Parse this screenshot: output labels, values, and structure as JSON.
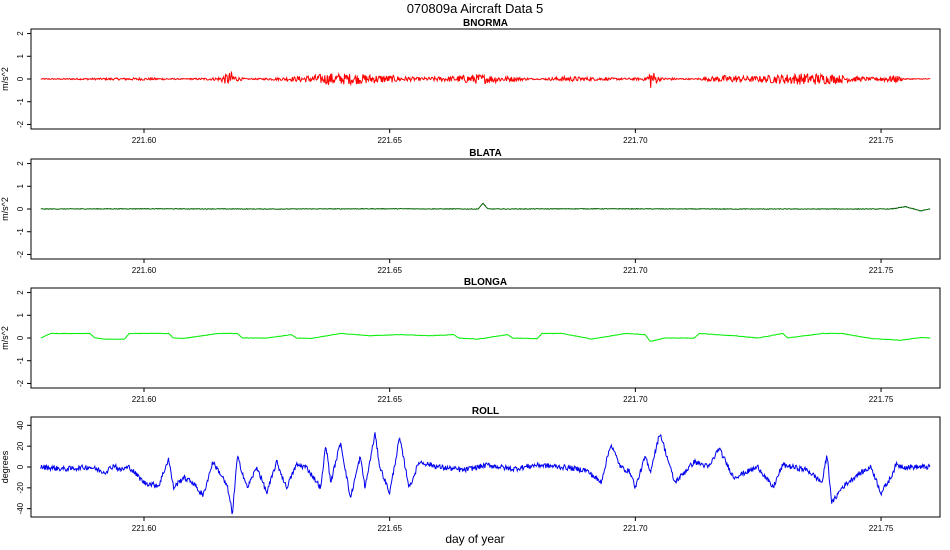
{
  "figure": {
    "title": "070809a   Aircraft Data 5",
    "xlabel": "day of year"
  },
  "chart_data": [
    {
      "type": "line",
      "title": "BNORMA",
      "ylabel": "m/s^2",
      "color": "#ff0000",
      "xlim": [
        221.577,
        221.762
      ],
      "ylim": [
        -2.2,
        2.2
      ],
      "xticks": [
        221.6,
        221.65,
        221.7,
        221.75
      ],
      "xtick_labels": [
        "221.60",
        "221.65",
        "221.70",
        "221.75"
      ],
      "yticks": [
        -2,
        -1,
        0,
        1,
        2
      ],
      "ytick_labels": [
        "-2",
        "-1",
        "0",
        "1",
        "2"
      ],
      "series": [
        {
          "x": [
            221.579,
            221.59,
            221.6,
            221.608,
            221.615,
            221.618,
            221.619,
            221.621,
            221.628,
            221.634,
            221.638,
            221.644,
            221.65,
            221.656,
            221.662,
            221.668,
            221.674,
            221.68,
            221.686,
            221.692,
            221.698,
            221.702,
            221.703,
            221.705,
            221.712,
            221.718,
            221.724,
            221.73,
            221.736,
            221.742,
            221.748,
            221.753,
            221.755,
            221.76
          ],
          "y": [
            0.0,
            0.02,
            0.04,
            0.0,
            0.05,
            0.35,
            0.08,
            0.0,
            0.05,
            0.15,
            0.25,
            0.2,
            0.15,
            0.05,
            0.1,
            0.2,
            0.1,
            0.0,
            0.1,
            0.05,
            0.02,
            0.05,
            0.45,
            0.05,
            0.0,
            0.15,
            0.1,
            0.2,
            0.25,
            0.15,
            0.05,
            0.15,
            0.0,
            0.0
          ]
        }
      ]
    },
    {
      "type": "line",
      "title": "BLATA",
      "ylabel": "m/s^2",
      "color": "#006400",
      "xlim": [
        221.577,
        221.762
      ],
      "ylim": [
        -2.2,
        2.2
      ],
      "xticks": [
        221.6,
        221.65,
        221.7,
        221.75
      ],
      "xtick_labels": [
        "221.60",
        "221.65",
        "221.70",
        "221.75"
      ],
      "yticks": [
        -2,
        -1,
        0,
        1,
        2
      ],
      "ytick_labels": [
        "-2",
        "-1",
        "0",
        "1",
        "2"
      ],
      "series": [
        {
          "x": [
            221.579,
            221.6,
            221.625,
            221.65,
            221.668,
            221.669,
            221.67,
            221.69,
            221.715,
            221.74,
            221.752,
            221.755,
            221.758,
            221.76
          ],
          "y": [
            0.0,
            0.01,
            0.0,
            0.01,
            0.0,
            0.25,
            0.0,
            0.01,
            0.0,
            0.0,
            0.0,
            0.1,
            -0.08,
            0.0
          ]
        }
      ]
    },
    {
      "type": "line",
      "title": "BLONGA",
      "ylabel": "m/s^2",
      "color": "#00ee00",
      "xlim": [
        221.577,
        221.762
      ],
      "ylim": [
        -2.2,
        2.2
      ],
      "xticks": [
        221.6,
        221.65,
        221.7,
        221.75
      ],
      "xtick_labels": [
        "221.60",
        "221.65",
        "221.70",
        "221.75"
      ],
      "yticks": [
        -2,
        -1,
        0,
        1,
        2
      ],
      "ytick_labels": [
        "-2",
        "-1",
        "0",
        "1",
        "2"
      ],
      "series": [
        {
          "x": [
            221.579,
            221.581,
            221.589,
            221.59,
            221.592,
            221.596,
            221.597,
            221.605,
            221.606,
            221.608,
            221.615,
            221.619,
            221.62,
            221.625,
            221.63,
            221.631,
            221.634,
            221.64,
            221.646,
            221.652,
            221.658,
            221.663,
            221.664,
            221.668,
            221.674,
            221.675,
            221.68,
            221.681,
            221.685,
            221.69,
            221.691,
            221.698,
            221.702,
            221.703,
            221.706,
            221.712,
            221.713,
            221.72,
            221.725,
            221.73,
            221.731,
            221.738,
            221.742,
            221.748,
            221.754,
            221.758,
            221.76
          ],
          "y": [
            0.0,
            0.2,
            0.2,
            0.0,
            -0.05,
            -0.05,
            0.2,
            0.2,
            0.0,
            -0.02,
            0.2,
            0.2,
            0.0,
            0.0,
            0.15,
            0.0,
            -0.02,
            0.2,
            0.1,
            0.15,
            0.1,
            0.15,
            0.0,
            -0.05,
            0.15,
            0.0,
            -0.03,
            0.2,
            0.2,
            0.0,
            -0.05,
            0.2,
            0.15,
            -0.15,
            0.0,
            0.0,
            0.2,
            0.1,
            0.0,
            0.2,
            0.0,
            0.2,
            0.2,
            -0.02,
            -0.1,
            0.02,
            0.0
          ]
        }
      ]
    },
    {
      "type": "line",
      "title": "ROLL",
      "ylabel": "degrees",
      "color": "#0000ee",
      "xlim": [
        221.577,
        221.762
      ],
      "ylim": [
        -48,
        48
      ],
      "xticks": [
        221.6,
        221.65,
        221.7,
        221.75
      ],
      "xtick_labels": [
        "221.60",
        "221.65",
        "221.70",
        "221.75"
      ],
      "yticks": [
        -40,
        -20,
        0,
        20,
        40
      ],
      "ytick_labels": [
        "-40",
        "-20",
        "0",
        "20",
        "40"
      ],
      "series": [
        {
          "x": [
            221.579,
            221.584,
            221.589,
            221.592,
            221.594,
            221.595,
            221.597,
            221.6,
            221.603,
            221.605,
            221.606,
            221.608,
            221.61,
            221.612,
            221.614,
            221.616,
            221.617,
            221.618,
            221.619,
            221.621,
            221.623,
            221.625,
            221.627,
            221.629,
            221.631,
            221.633,
            221.636,
            221.637,
            221.638,
            221.64,
            221.642,
            221.644,
            221.645,
            221.647,
            221.648,
            221.65,
            221.652,
            221.654,
            221.656,
            221.66,
            221.665,
            221.67,
            221.675,
            221.68,
            221.685,
            221.69,
            221.693,
            221.695,
            221.697,
            221.699,
            221.7,
            221.702,
            221.703,
            221.705,
            221.708,
            221.712,
            221.715,
            221.717,
            221.72,
            221.725,
            221.728,
            221.73,
            221.735,
            221.738,
            221.739,
            221.74,
            221.742,
            221.745,
            221.748,
            221.75,
            221.752,
            221.753,
            221.755,
            221.76
          ],
          "y": [
            0,
            -2,
            0,
            -5,
            2,
            -3,
            0,
            -15,
            -18,
            8,
            -20,
            -10,
            -15,
            -28,
            5,
            -10,
            -20,
            -45,
            10,
            -20,
            0,
            -25,
            5,
            -20,
            2,
            0,
            -20,
            22,
            -15,
            24,
            -30,
            10,
            -20,
            32,
            0,
            -25,
            28,
            -20,
            5,
            0,
            -3,
            2,
            -2,
            2,
            0,
            -3,
            -15,
            22,
            0,
            -5,
            -20,
            10,
            -5,
            33,
            -15,
            5,
            0,
            18,
            -10,
            0,
            -20,
            2,
            -3,
            -15,
            12,
            -35,
            -20,
            -8,
            0,
            -25,
            -10,
            2,
            0,
            0
          ]
        }
      ]
    }
  ]
}
